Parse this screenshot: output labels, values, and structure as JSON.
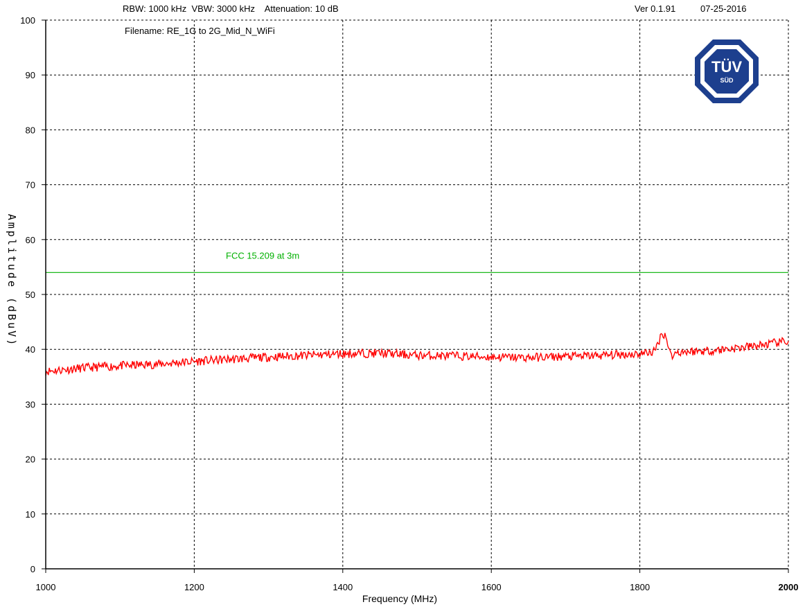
{
  "header": {
    "settings": "RBW: 1000 kHz  VBW: 3000 kHz    Attenuation: 10 dB",
    "version": "Ver 0.1.91",
    "date": "07-25-2016",
    "filename": "Filename: RE_1G to 2G_Mid_N_WiFi"
  },
  "logo": {
    "top_text": "TÜV",
    "bottom_text": "SÜD",
    "color": "#1d3f8e"
  },
  "chart_data": {
    "type": "line",
    "xlabel": "Frequency (MHz)",
    "ylabel": "Amplitude (dBuV)",
    "xlim": [
      1000,
      2000
    ],
    "ylim": [
      0,
      100
    ],
    "x_ticks": [
      1000,
      1200,
      1400,
      1600,
      1800,
      2000
    ],
    "x_tick_labels": [
      "1000",
      "1200",
      "1400",
      "1600",
      "1800",
      "2000"
    ],
    "y_ticks": [
      0,
      10,
      20,
      30,
      40,
      50,
      60,
      70,
      80,
      90,
      100
    ],
    "y_tick_labels": [
      "0",
      "10",
      "20",
      "30",
      "40",
      "50",
      "60",
      "70",
      "80",
      "90",
      "100"
    ],
    "grid": true,
    "limit_line": {
      "label": "FCC 15.209 at 3m",
      "value": 54,
      "color": "#00b000"
    },
    "series": [
      {
        "color": "#ff0000",
        "x": [
          1000,
          1050,
          1100,
          1150,
          1200,
          1250,
          1300,
          1350,
          1400,
          1450,
          1500,
          1550,
          1600,
          1650,
          1700,
          1750,
          1800,
          1820,
          1830,
          1835,
          1840,
          1845,
          1850,
          1900,
          1950,
          2000
        ],
        "y": [
          36,
          36.6,
          37,
          37.3,
          37.8,
          38.2,
          38.6,
          38.9,
          39.2,
          39.3,
          38.9,
          38.8,
          38.6,
          38.5,
          38.7,
          38.9,
          39.2,
          39.6,
          43,
          42.5,
          39.5,
          38.8,
          39.5,
          39.8,
          40.5,
          41.5
        ]
      }
    ]
  }
}
